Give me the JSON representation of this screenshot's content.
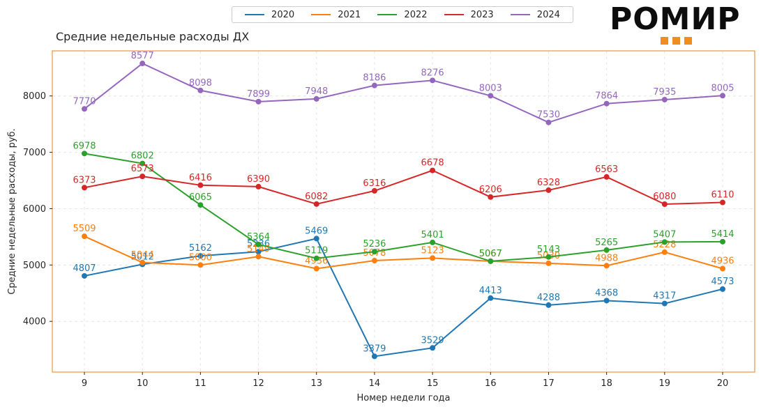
{
  "title": "Средние недельные расходы ДХ",
  "logo": {
    "text": "РОМИР",
    "accent": "#f28c1e"
  },
  "colors": {
    "frame": "#e0821c",
    "grid": "#e6e6e6"
  },
  "chart_data": {
    "type": "line",
    "title": "Средние недельные расходы ДХ",
    "xlabel": "Номер недели года",
    "ylabel": "Средние недельные расходы, руб.",
    "x": [
      9,
      10,
      11,
      12,
      13,
      14,
      15,
      16,
      17,
      18,
      19,
      20
    ],
    "ylim": [
      3100,
      8800
    ],
    "yticks": [
      4000,
      5000,
      6000,
      7000,
      8000
    ],
    "grid": true,
    "legend_position": "top-center",
    "series": [
      {
        "name": "2020",
        "color": "#1f77b4",
        "values": [
          4807,
          5012,
          5162,
          5236,
          5469,
          3379,
          3529,
          4413,
          4288,
          4368,
          4317,
          4573
        ]
      },
      {
        "name": "2021",
        "color": "#ff7f0e",
        "values": [
          5509,
          5044,
          5000,
          5149,
          4936,
          5078,
          5123,
          5067,
          5030,
          4988,
          5228,
          4936
        ]
      },
      {
        "name": "2022",
        "color": "#2ca02c",
        "values": [
          6978,
          6802,
          6065,
          5364,
          5119,
          5236,
          5401,
          5067,
          5143,
          5265,
          5407,
          5414
        ]
      },
      {
        "name": "2023",
        "color": "#d62728",
        "values": [
          6373,
          6573,
          6416,
          6390,
          6082,
          6316,
          6678,
          6206,
          6328,
          6563,
          6080,
          6110
        ]
      },
      {
        "name": "2024",
        "color": "#9467bd",
        "values": [
          7770,
          8577,
          8098,
          7899,
          7948,
          8186,
          8276,
          8003,
          7530,
          7864,
          7935,
          8005
        ]
      }
    ]
  }
}
